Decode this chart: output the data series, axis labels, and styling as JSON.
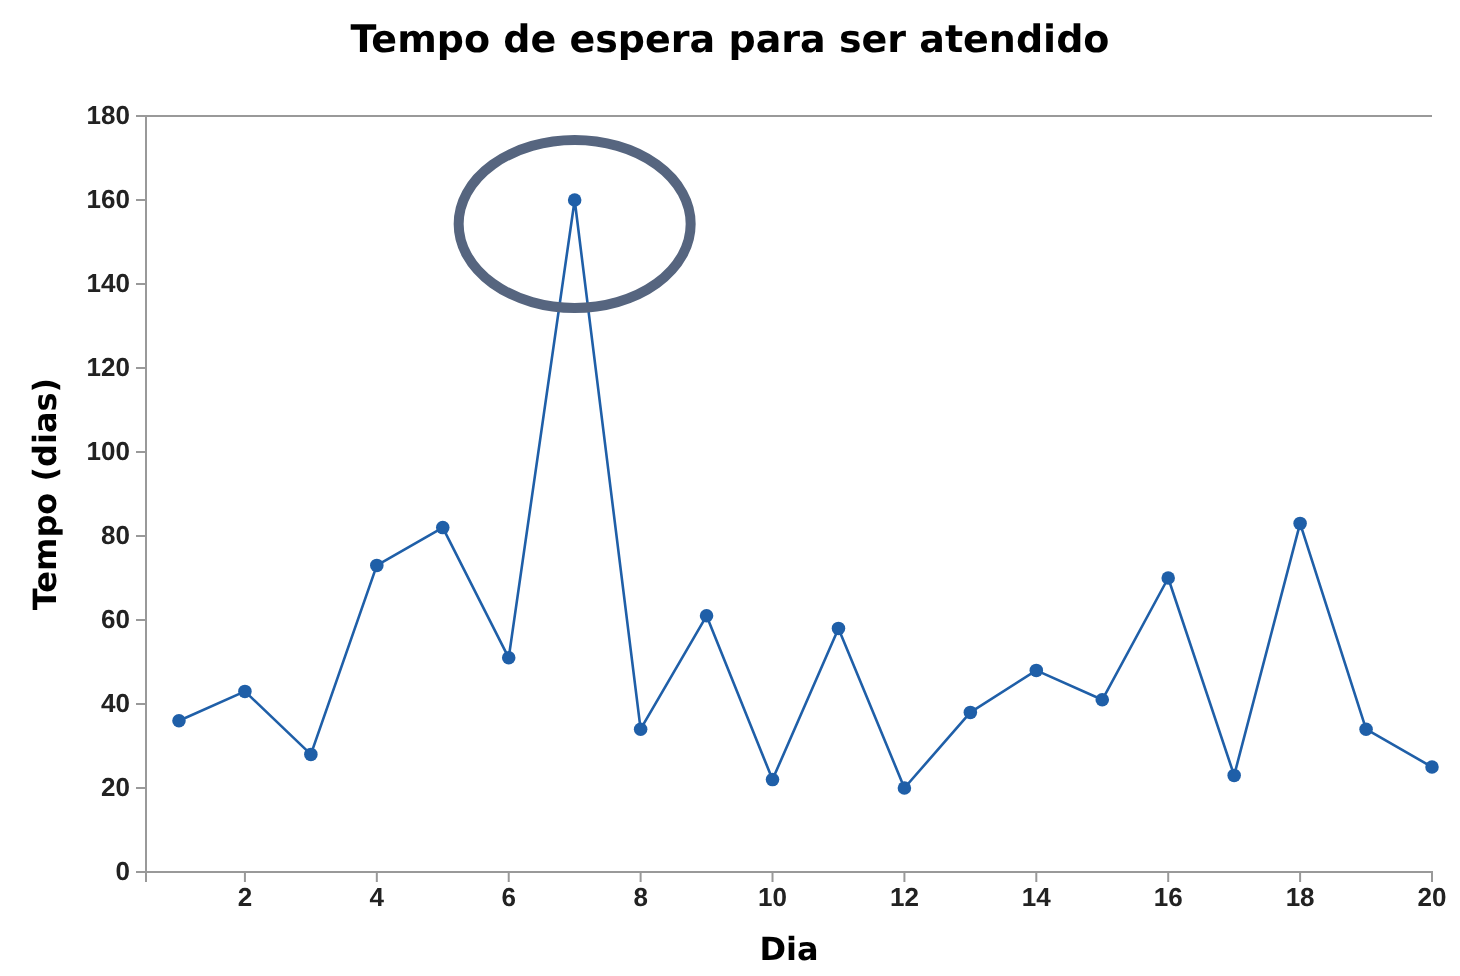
{
  "chart_data": {
    "type": "line",
    "title": "Tempo de espera para ser atendido",
    "xlabel": "Dia",
    "ylabel": "Tempo (dias)",
    "x": [
      1,
      2,
      3,
      4,
      5,
      6,
      7,
      8,
      9,
      10,
      11,
      12,
      13,
      14,
      15,
      16,
      17,
      18,
      19,
      20
    ],
    "series": [
      {
        "color": "#1f5fa8",
        "values": [
          36,
          43,
          28,
          73,
          82,
          51,
          160,
          34,
          61,
          22,
          58,
          20,
          38,
          48,
          41,
          70,
          23,
          83,
          34,
          25
        ]
      }
    ],
    "xlim": [
      0.5,
      20
    ],
    "xticks": [
      2,
      4,
      6,
      8,
      10,
      12,
      14,
      16,
      18,
      20
    ],
    "ylim": [
      0,
      180
    ],
    "yticks": [
      0,
      20,
      40,
      60,
      80,
      100,
      120,
      140,
      160,
      180
    ],
    "marker": "circle",
    "line_style": "solid",
    "grid": false
  }
}
